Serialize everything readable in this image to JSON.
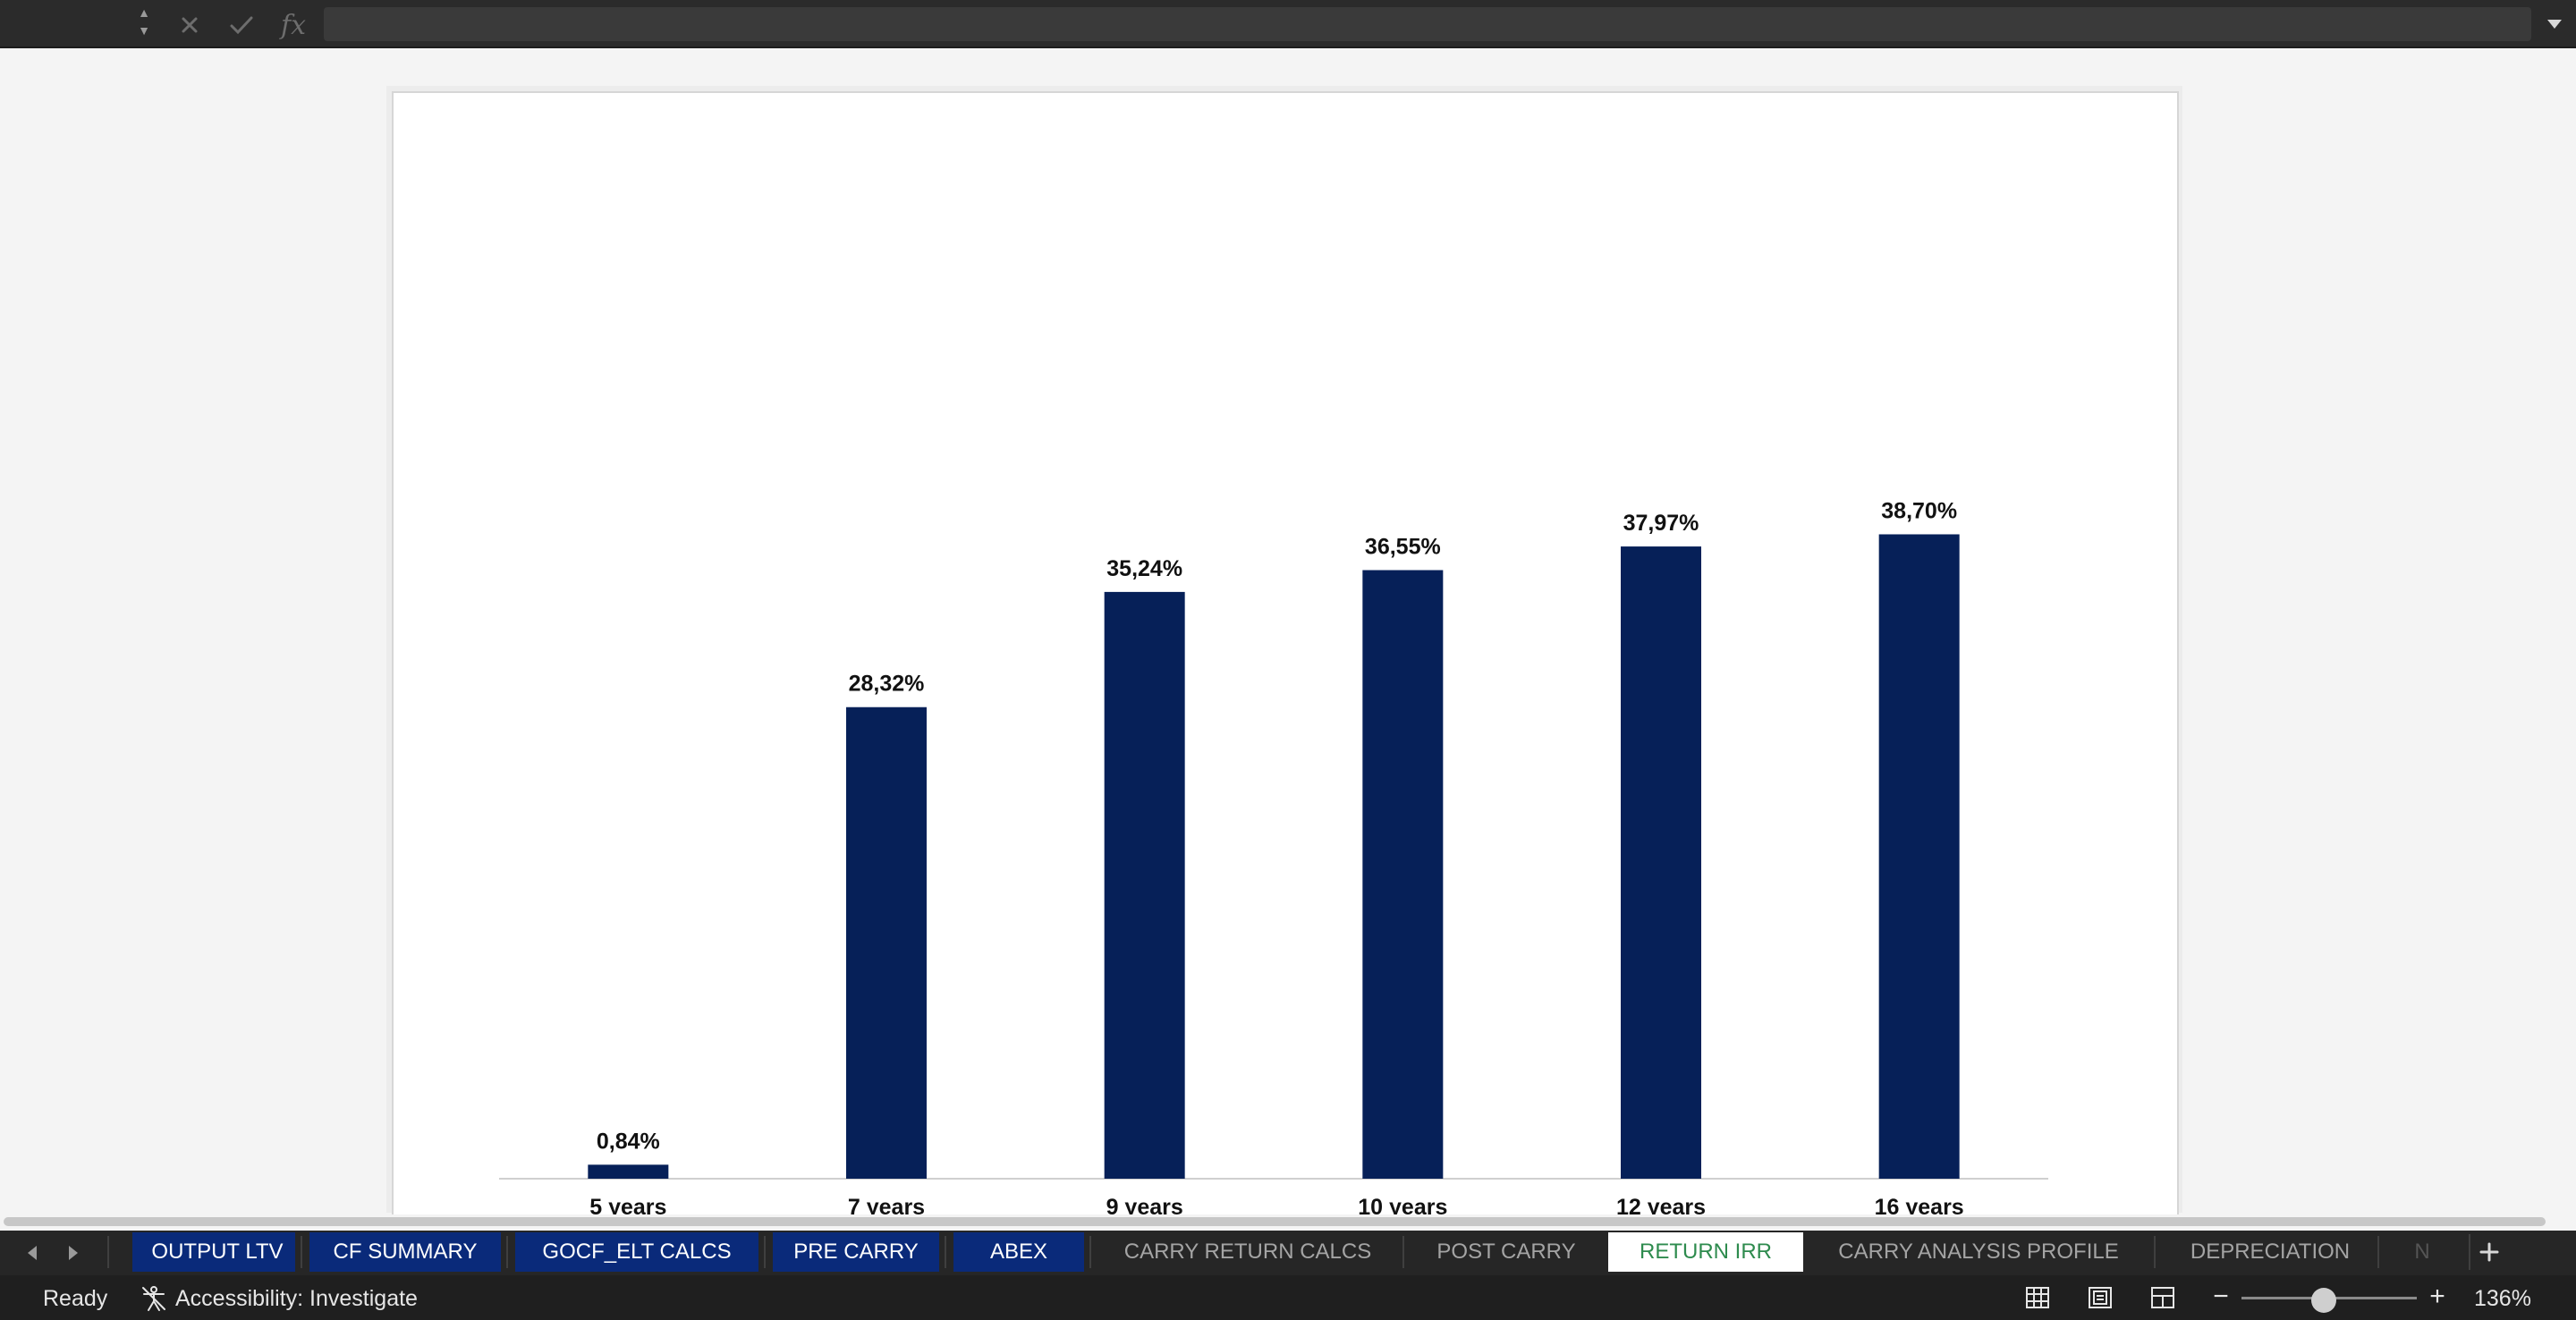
{
  "formula_bar": {
    "name_box_value": "",
    "formula_value": "",
    "fx_label": "fx"
  },
  "chart_data": {
    "type": "bar",
    "title": "",
    "categories": [
      "5 years",
      "7 years",
      "9 years",
      "10 years",
      "12 years",
      "16 years"
    ],
    "values": [
      0.84,
      28.32,
      35.24,
      36.55,
      37.97,
      38.7
    ],
    "value_labels": [
      "0,84%",
      "28,32%",
      "35,24%",
      "36,55%",
      "37,97%",
      "38,70%"
    ],
    "unit": "%",
    "ylim": [
      0,
      55
    ],
    "grid": false,
    "legend": "none",
    "bar_color": "#062058"
  },
  "sheet_tabs": [
    {
      "label": "OUTPUT LTV",
      "style": "navy"
    },
    {
      "label": "CF SUMMARY",
      "style": "navy"
    },
    {
      "label": "GOCF_ELT CALCS",
      "style": "navy"
    },
    {
      "label": "PRE CARRY",
      "style": "navy"
    },
    {
      "label": "ABEX",
      "style": "navy"
    },
    {
      "label": "CARRY RETURN CALCS",
      "style": "plain"
    },
    {
      "label": "POST CARRY",
      "style": "plain"
    },
    {
      "label": "RETURN IRR",
      "style": "active"
    },
    {
      "label": "CARRY ANALYSIS PROFILE",
      "style": "plain"
    },
    {
      "label": "DEPRECIATION",
      "style": "plain"
    },
    {
      "label": "N",
      "style": "plain"
    }
  ],
  "status_bar": {
    "ready": "Ready",
    "accessibility": "Accessibility: Investigate",
    "zoom": "136%",
    "zoom_fraction": 0.47
  },
  "colors": {
    "navy_tab": "#0a2a7a",
    "active_tab_text": "#2e8b4e"
  }
}
